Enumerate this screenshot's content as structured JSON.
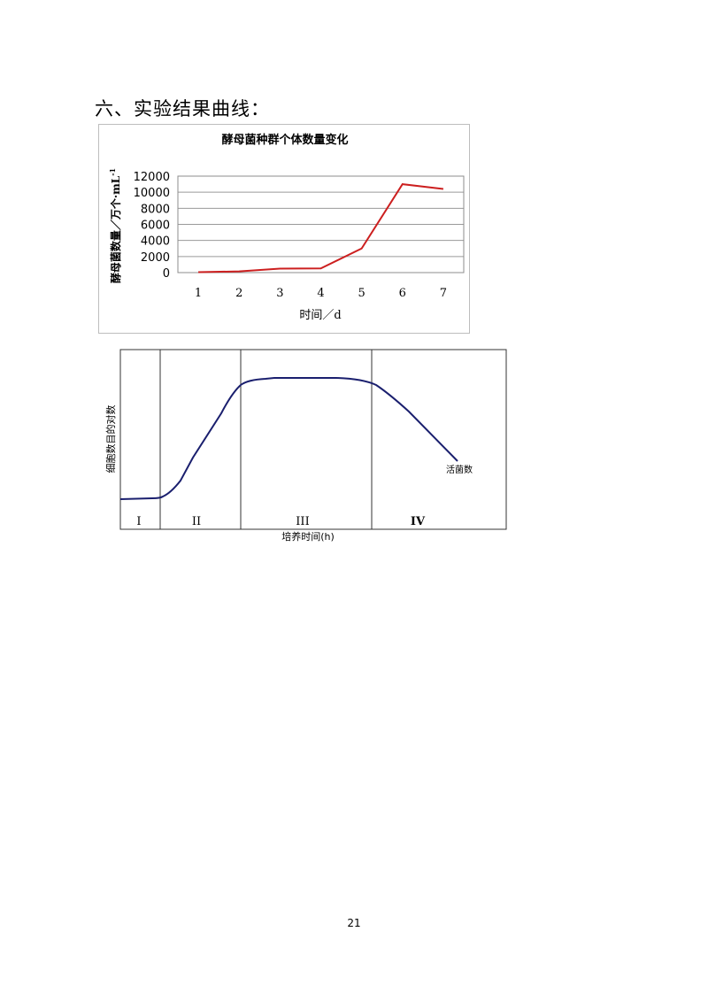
{
  "heading": "六、实验结果曲线：",
  "page_number": "21",
  "chart_data": [
    {
      "type": "line",
      "title": "酵母菌种群个体数量变化",
      "xlabel": "时间／d",
      "ylabel": "酵母菌数量／万个·mL",
      "ylabel_sup": "-1",
      "categories": [
        "1",
        "2",
        "3",
        "4",
        "5",
        "6",
        "7"
      ],
      "series": [
        {
          "values": [
            50,
            150,
            500,
            520,
            3000,
            11000,
            10400
          ]
        }
      ],
      "ylim": [
        0,
        12000
      ],
      "yticks": [
        "0",
        "2000",
        "4000",
        "6000",
        "8000",
        "10000",
        "12000"
      ],
      "grid": true,
      "line_color": "#cc1f1f"
    },
    {
      "type": "line",
      "xlabel": "培养时间(h)",
      "ylabel": "细胞数目的对数",
      "phases": [
        "I",
        "II",
        "III",
        "IV"
      ],
      "curve_label": "活菌数",
      "line_color": "#1a1f6e"
    }
  ]
}
